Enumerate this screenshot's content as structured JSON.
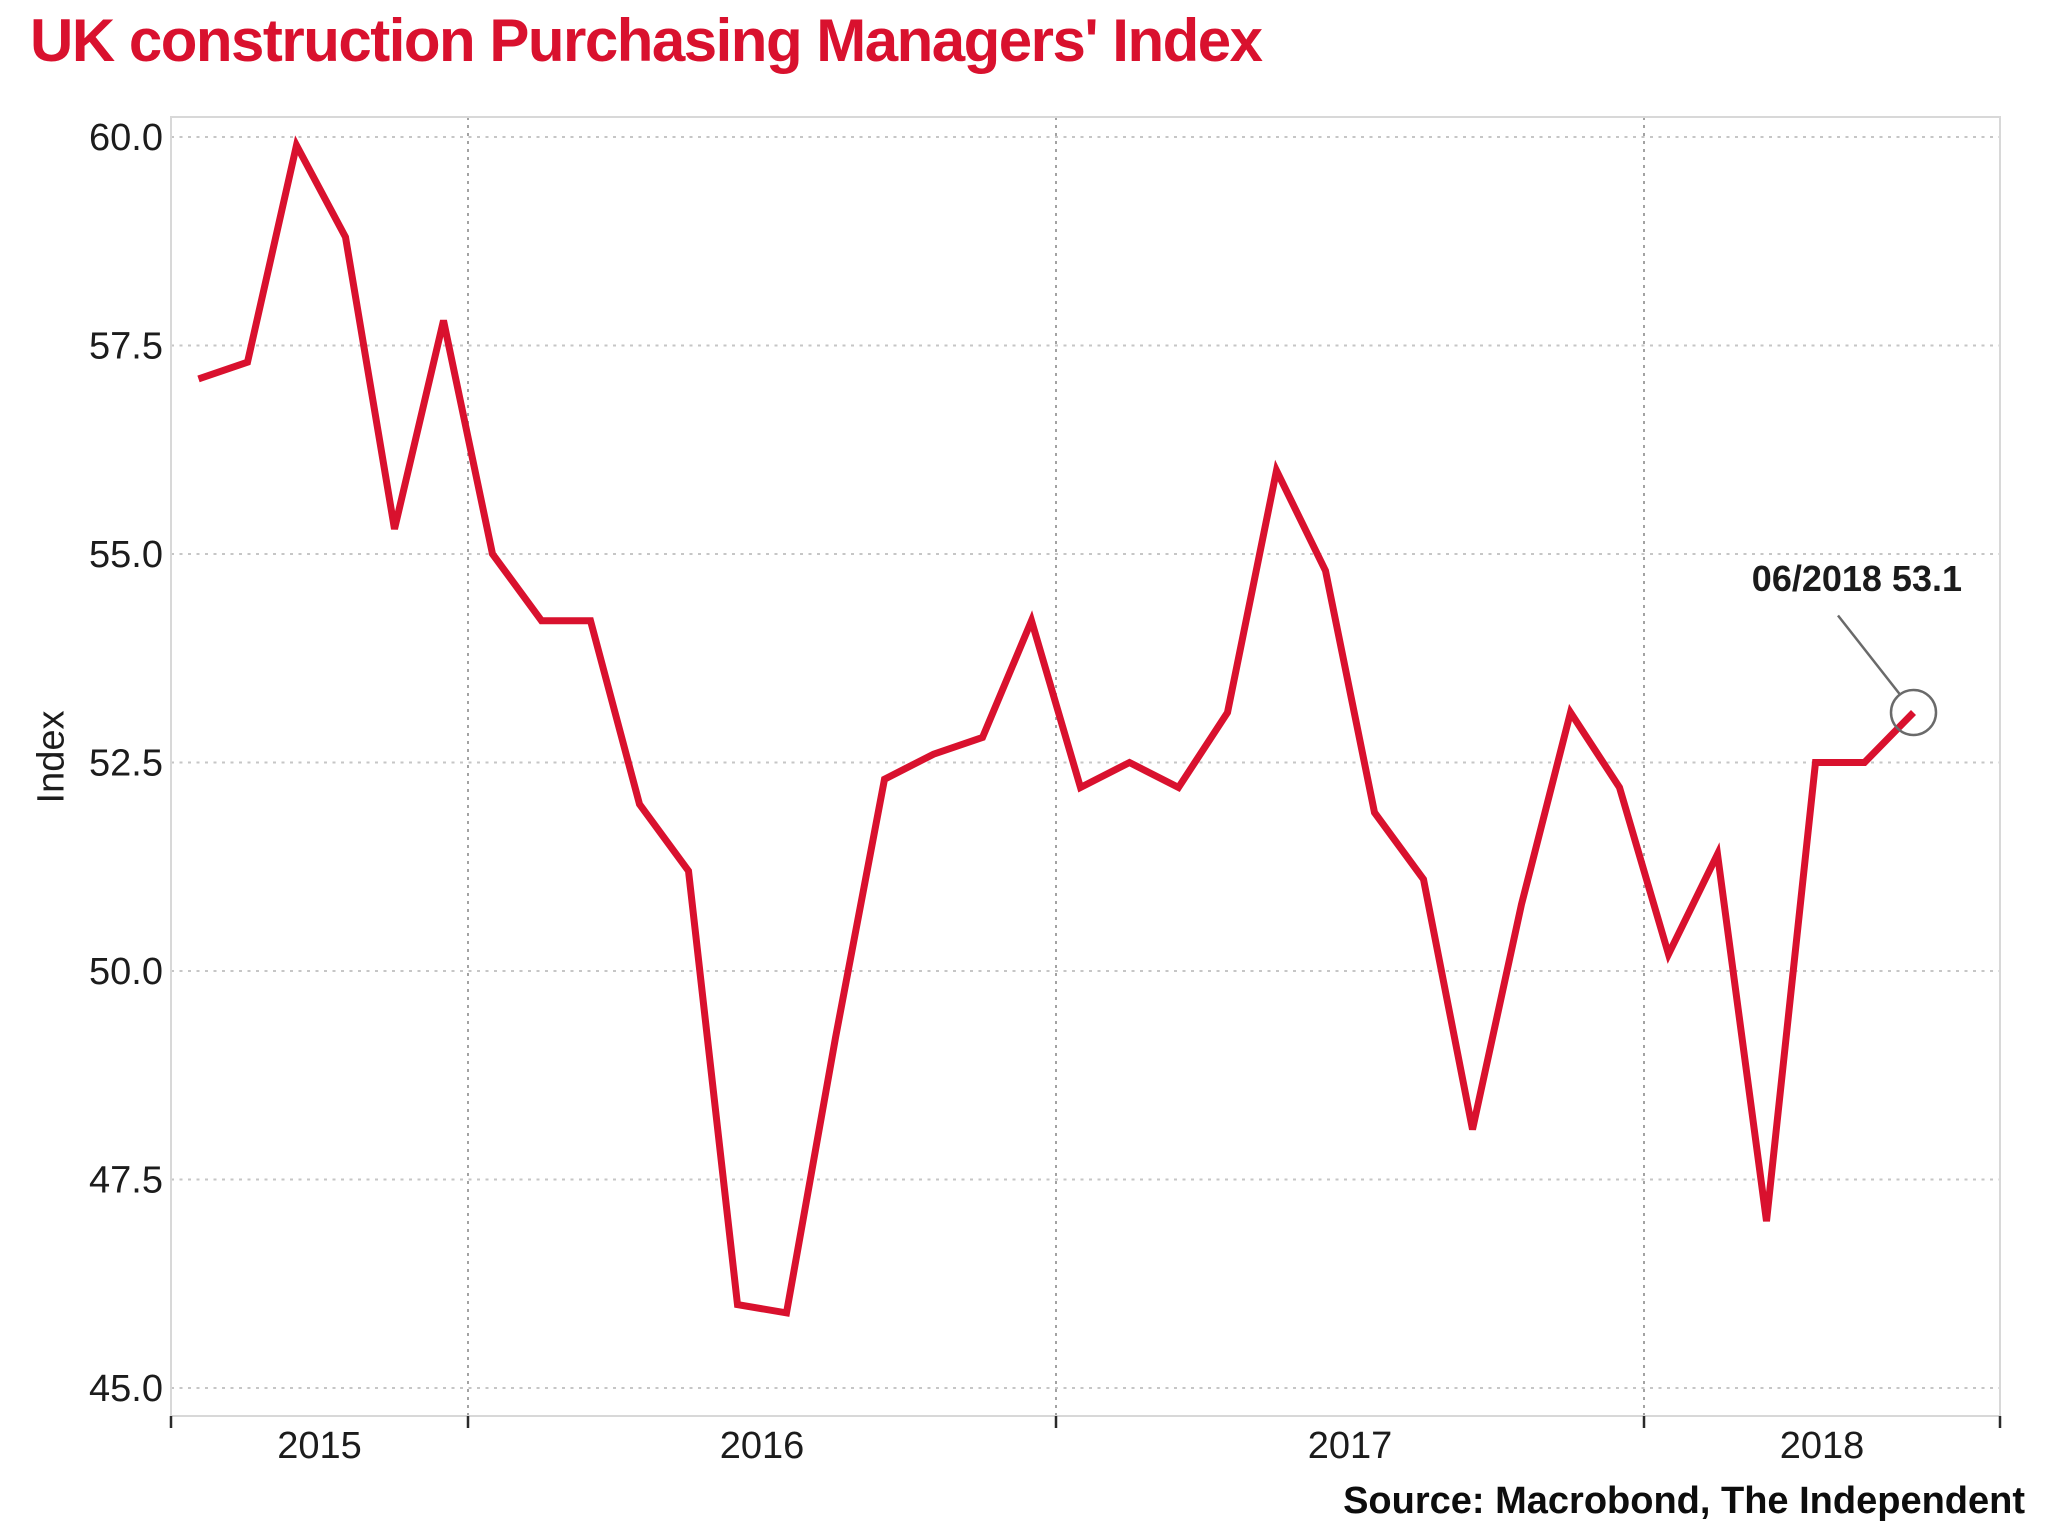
{
  "title": "UK construction Purchasing Managers' Index",
  "source": "Source: Macrobond, The Independent",
  "annotation": {
    "label": "06/2018 53.1"
  },
  "y_axis": {
    "label": "Index",
    "ticks": [
      "60.0",
      "57.5",
      "55.0",
      "52.5",
      "50.0",
      "47.5",
      "45.0"
    ]
  },
  "x_axis": {
    "ticks": [
      "2015",
      "2016",
      "2017",
      "2018"
    ]
  },
  "colors": {
    "line": "#d9112e",
    "title": "#d9112e",
    "grid_horizontal": "#c6c6c6",
    "grid_vertical": "#a3a3a3",
    "plot_border": "#d8d8d8",
    "axis_tick": "#2a2a2a",
    "tick_label": "#1c1c1c",
    "annotation_marker": "#6a6a6a"
  },
  "chart_data": {
    "type": "line",
    "title": "UK construction Purchasing Managers' Index",
    "xlabel": "",
    "ylabel": "Index",
    "ylim": [
      45.0,
      60.0
    ],
    "y_tick_step": 2.5,
    "grid": true,
    "legend_position": "none",
    "series_name": "UK construction PMI",
    "months": [
      "2015-07",
      "2015-08",
      "2015-09",
      "2015-10",
      "2015-11",
      "2015-12",
      "2016-01",
      "2016-02",
      "2016-03",
      "2016-04",
      "2016-05",
      "2016-06",
      "2016-07",
      "2016-08",
      "2016-09",
      "2016-10",
      "2016-11",
      "2016-12",
      "2017-01",
      "2017-02",
      "2017-03",
      "2017-04",
      "2017-05",
      "2017-06",
      "2017-07",
      "2017-08",
      "2017-09",
      "2017-10",
      "2017-11",
      "2017-12",
      "2018-01",
      "2018-02",
      "2018-03",
      "2018-04",
      "2018-05",
      "2018-06"
    ],
    "values": [
      57.1,
      57.3,
      59.9,
      58.8,
      55.3,
      57.8,
      55.0,
      54.2,
      54.2,
      52.0,
      51.2,
      46.0,
      45.9,
      49.2,
      52.3,
      52.6,
      52.8,
      54.2,
      52.2,
      52.5,
      52.2,
      53.1,
      56.0,
      54.8,
      51.9,
      51.1,
      48.1,
      50.8,
      53.1,
      52.2,
      50.2,
      51.4,
      47.0,
      52.5,
      52.5,
      53.1
    ],
    "annotation": {
      "x": "2018-06",
      "y": 53.1,
      "label": "06/2018 53.1"
    }
  }
}
